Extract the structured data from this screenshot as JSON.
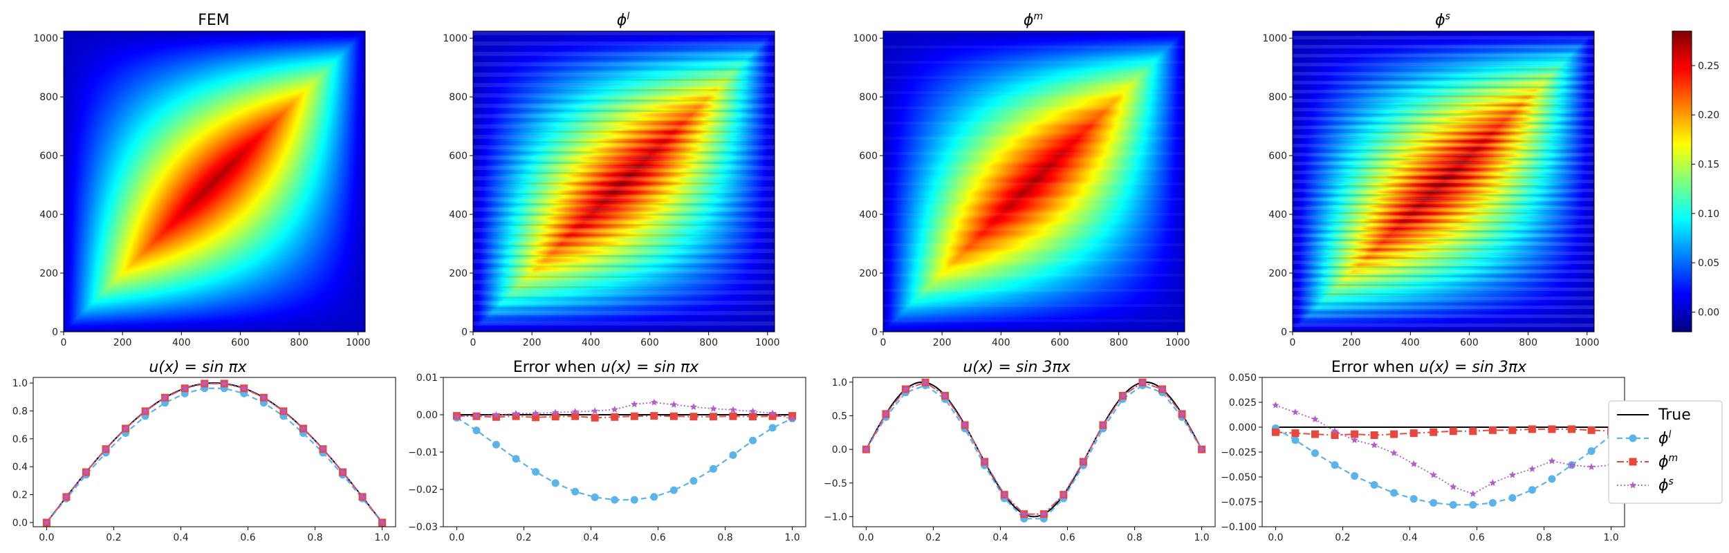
{
  "chart_data": [
    {
      "type": "heatmap",
      "id": "hm0",
      "title": "FEM",
      "xlim": [
        0,
        1024
      ],
      "ylim": [
        0,
        1024
      ],
      "xticks": [
        "0",
        "200",
        "400",
        "600",
        "800",
        "1000"
      ],
      "yticks": [
        "0",
        "200",
        "400",
        "600",
        "800",
        "1000"
      ],
      "peak_value": 0.28,
      "peak_location": [
        512,
        512
      ],
      "banding": "none"
    },
    {
      "type": "heatmap",
      "id": "hm1",
      "title": "ϕl",
      "xlim": [
        0,
        1024
      ],
      "ylim": [
        0,
        1024
      ],
      "xticks": [
        "0",
        "200",
        "400",
        "600",
        "800",
        "1000"
      ],
      "yticks": [
        "0",
        "200",
        "400",
        "600",
        "800",
        "1000"
      ],
      "peak_value": 0.28,
      "peak_location": [
        512,
        512
      ],
      "banding": "horizontal"
    },
    {
      "type": "heatmap",
      "id": "hm2",
      "title": "ϕm",
      "xlim": [
        0,
        1024
      ],
      "ylim": [
        0,
        1024
      ],
      "xticks": [
        "0",
        "200",
        "400",
        "600",
        "800",
        "1000"
      ],
      "yticks": [
        "0",
        "200",
        "400",
        "600",
        "800",
        "1000"
      ],
      "peak_value": 0.28,
      "peak_location": [
        512,
        512
      ],
      "banding": "light"
    },
    {
      "type": "heatmap",
      "id": "hm3",
      "title": "ϕs",
      "xlim": [
        0,
        1024
      ],
      "ylim": [
        0,
        1024
      ],
      "xticks": [
        "0",
        "200",
        "400",
        "600",
        "800",
        "1000"
      ],
      "yticks": [
        "0",
        "200",
        "400",
        "600",
        "800",
        "1000"
      ],
      "peak_value": 0.28,
      "peak_location": [
        512,
        512
      ],
      "banding": "strong"
    },
    {
      "type": "colorbar",
      "id": "cbar",
      "colormap": "jet",
      "range": [
        -0.02,
        0.285
      ],
      "ticks": [
        0.0,
        0.05,
        0.1,
        0.15,
        0.2,
        0.25
      ],
      "tick_labels": [
        "0.00",
        "0.05",
        "0.10",
        "0.15",
        "0.20",
        "0.25"
      ]
    },
    {
      "type": "line",
      "id": "lp0",
      "title": "u(x) = sin πx",
      "xlim": [
        -0.04,
        1.04
      ],
      "ylim": [
        -0.03,
        1.04
      ],
      "xticks": [
        0.0,
        0.2,
        0.4,
        0.6,
        0.8,
        1.0
      ],
      "xtick_labels": [
        "0.0",
        "0.2",
        "0.4",
        "0.6",
        "0.8",
        "1.0"
      ],
      "yticks": [
        0.0,
        0.2,
        0.4,
        0.6,
        0.8,
        1.0
      ],
      "ytick_labels": [
        "0.0",
        "0.2",
        "0.4",
        "0.6",
        "0.8",
        "1.0"
      ],
      "x": [
        0,
        0.0588,
        0.1176,
        0.1765,
        0.2353,
        0.2941,
        0.3529,
        0.4118,
        0.4706,
        0.5294,
        0.5882,
        0.6471,
        0.7059,
        0.7647,
        0.8235,
        0.8824,
        0.9412,
        1.0
      ],
      "series": [
        {
          "name": "True",
          "values": [
            0,
            0.1837,
            0.3612,
            0.5264,
            0.6737,
            0.798,
            0.8952,
            0.9618,
            0.9957,
            0.9957,
            0.9618,
            0.8952,
            0.798,
            0.6737,
            0.5264,
            0.3612,
            0.1837,
            0
          ]
        },
        {
          "name": "ϕl",
          "values": [
            0,
            0.172,
            0.342,
            0.5,
            0.641,
            0.763,
            0.858,
            0.925,
            0.962,
            0.962,
            0.925,
            0.858,
            0.763,
            0.641,
            0.5,
            0.342,
            0.172,
            0
          ]
        },
        {
          "name": "ϕm",
          "values": [
            0,
            0.1837,
            0.3612,
            0.5264,
            0.6737,
            0.798,
            0.8952,
            0.9618,
            0.9957,
            0.9957,
            0.9618,
            0.8952,
            0.798,
            0.6737,
            0.5264,
            0.3612,
            0.1837,
            0
          ]
        },
        {
          "name": "ϕs",
          "values": [
            0,
            0.1837,
            0.3612,
            0.5264,
            0.6737,
            0.798,
            0.8952,
            0.9618,
            0.9957,
            0.9957,
            0.9618,
            0.8952,
            0.798,
            0.6737,
            0.5264,
            0.3612,
            0.1837,
            0
          ]
        }
      ]
    },
    {
      "type": "line",
      "id": "lp1",
      "title": "Error when u(x) = sin πx",
      "xlim": [
        -0.04,
        1.04
      ],
      "ylim": [
        -0.03,
        0.01
      ],
      "xticks": [
        0.0,
        0.2,
        0.4,
        0.6,
        0.8,
        1.0
      ],
      "xtick_labels": [
        "0.0",
        "0.2",
        "0.4",
        "0.6",
        "0.8",
        "1.0"
      ],
      "yticks": [
        -0.03,
        -0.02,
        -0.01,
        0.0,
        0.01
      ],
      "ytick_labels": [
        "−0.03",
        "−0.02",
        "−0.01",
        "0.00",
        "0.01"
      ],
      "x": [
        0,
        0.0588,
        0.1176,
        0.1765,
        0.2353,
        0.2941,
        0.3529,
        0.4118,
        0.4706,
        0.5294,
        0.5882,
        0.6471,
        0.7059,
        0.7647,
        0.8235,
        0.8824,
        0.9412,
        1.0
      ],
      "series": [
        {
          "name": "True",
          "values": [
            0,
            0,
            0,
            0,
            0,
            0,
            0,
            0,
            0,
            0,
            0,
            0,
            0,
            0,
            0,
            0,
            0,
            0
          ]
        },
        {
          "name": "ϕl",
          "values": [
            -0.0008,
            -0.0042,
            -0.008,
            -0.0118,
            -0.0153,
            -0.0183,
            -0.0206,
            -0.0221,
            -0.0228,
            -0.0228,
            -0.022,
            -0.0202,
            -0.0177,
            -0.0145,
            -0.0108,
            -0.0069,
            -0.0035,
            -0.001
          ]
        },
        {
          "name": "ϕm",
          "values": [
            -0.0003,
            -0.0004,
            -0.0006,
            -0.0004,
            -0.0007,
            -0.0005,
            -0.0004,
            -0.0008,
            -0.0006,
            -0.0004,
            -0.0003,
            -0.0004,
            -0.0005,
            -0.0005,
            -0.0004,
            -0.0005,
            -0.0004,
            -0.0003
          ]
        },
        {
          "name": "ϕs",
          "values": [
            -0.0005,
            -0.0003,
            -0.0001,
            0.0003,
            0.0004,
            0.0006,
            0.0008,
            0.001,
            0.0014,
            0.0028,
            0.0033,
            0.0027,
            0.0021,
            0.0016,
            0.0013,
            0.0009,
            0.0004,
            -0.0011
          ]
        }
      ]
    },
    {
      "type": "line",
      "id": "lp2",
      "title": "u(x) = sin 3πx",
      "xlim": [
        -0.04,
        1.04
      ],
      "ylim": [
        -1.15,
        1.07
      ],
      "xticks": [
        0.0,
        0.2,
        0.4,
        0.6,
        0.8,
        1.0
      ],
      "xtick_labels": [
        "0.0",
        "0.2",
        "0.4",
        "0.6",
        "0.8",
        "1.0"
      ],
      "yticks": [
        -1.0,
        -0.5,
        0.0,
        0.5,
        1.0
      ],
      "ytick_labels": [
        "−1.0",
        "−0.5",
        "0.0",
        "0.5",
        "1.0"
      ],
      "x": [
        0,
        0.0588,
        0.1176,
        0.1765,
        0.2353,
        0.2941,
        0.3529,
        0.4118,
        0.4706,
        0.5294,
        0.5882,
        0.6471,
        0.7059,
        0.7647,
        0.8235,
        0.8824,
        0.9412,
        1.0
      ],
      "series": [
        {
          "name": "True",
          "values": [
            0,
            0.5264,
            0.8952,
            0.9957,
            0.798,
            0.3612,
            -0.1837,
            -0.6737,
            -0.9618,
            -0.9618,
            -0.6737,
            -0.1837,
            0.3612,
            0.798,
            0.9957,
            0.8952,
            0.5264,
            0
          ]
        },
        {
          "name": "ϕl",
          "values": [
            0,
            0.48,
            0.846,
            0.952,
            0.748,
            0.31,
            -0.238,
            -0.728,
            -1.03,
            -1.03,
            -0.728,
            -0.238,
            0.31,
            0.748,
            0.952,
            0.846,
            0.48,
            0
          ]
        },
        {
          "name": "ϕm",
          "values": [
            0,
            0.5264,
            0.8952,
            0.9957,
            0.798,
            0.3612,
            -0.1837,
            -0.6737,
            -0.9618,
            -0.9618,
            -0.6737,
            -0.1837,
            0.3612,
            0.798,
            0.9957,
            0.8952,
            0.5264,
            0
          ]
        },
        {
          "name": "ϕs",
          "values": [
            0,
            0.5264,
            0.8952,
            0.9957,
            0.798,
            0.3612,
            -0.1837,
            -0.6737,
            -0.9618,
            -0.9618,
            -0.6737,
            -0.1837,
            0.3612,
            0.798,
            0.9957,
            0.8952,
            0.5264,
            0
          ]
        }
      ]
    },
    {
      "type": "line",
      "id": "lp3",
      "title": "Error when u(x) = sin 3πx",
      "xlim": [
        -0.04,
        1.04
      ],
      "ylim": [
        -0.1,
        0.05
      ],
      "xticks": [
        0.0,
        0.2,
        0.4,
        0.6,
        0.8,
        1.0
      ],
      "xtick_labels": [
        "0.0",
        "0.2",
        "0.4",
        "0.6",
        "0.8",
        "1.0"
      ],
      "yticks": [
        -0.1,
        -0.075,
        -0.05,
        -0.025,
        0.0,
        0.025,
        0.05
      ],
      "ytick_labels": [
        "−0.100",
        "−0.075",
        "−0.050",
        "−0.025",
        "0.000",
        "0.025",
        "0.050"
      ],
      "x": [
        0,
        0.0588,
        0.1176,
        0.1765,
        0.2353,
        0.2941,
        0.3529,
        0.4118,
        0.4706,
        0.5294,
        0.5882,
        0.6471,
        0.7059,
        0.7647,
        0.8235,
        0.8824,
        0.9412,
        1.0
      ],
      "series": [
        {
          "name": "True",
          "values": [
            0,
            0,
            0,
            0,
            0,
            0,
            0,
            0,
            0,
            0,
            0,
            0,
            0,
            0,
            0,
            0,
            0,
            0
          ]
        },
        {
          "name": "ϕl",
          "values": [
            -0.001,
            -0.013,
            -0.026,
            -0.038,
            -0.049,
            -0.058,
            -0.066,
            -0.072,
            -0.076,
            -0.078,
            -0.078,
            -0.076,
            -0.071,
            -0.063,
            -0.052,
            -0.038,
            -0.024,
            -0.008
          ]
        },
        {
          "name": "ϕm",
          "values": [
            -0.005,
            -0.006,
            -0.007,
            -0.008,
            -0.007,
            -0.008,
            -0.007,
            -0.006,
            -0.005,
            -0.004,
            -0.004,
            -0.003,
            -0.003,
            -0.002,
            -0.002,
            -0.002,
            -0.003,
            -0.004
          ]
        },
        {
          "name": "ϕs",
          "values": [
            0.022,
            0.015,
            0.008,
            -0.004,
            -0.013,
            -0.018,
            -0.026,
            -0.037,
            -0.048,
            -0.06,
            -0.067,
            -0.056,
            -0.048,
            -0.042,
            -0.034,
            -0.038,
            -0.04,
            -0.038
          ]
        }
      ]
    }
  ],
  "legend": {
    "entries": [
      {
        "series": "True",
        "label_main": "True",
        "label_sup": "",
        "color": "#000000",
        "marker": "none",
        "dash": "solid"
      },
      {
        "series": "ϕl",
        "label_main": "ϕ",
        "label_sup": "l",
        "color": "#5ab4ea",
        "marker": "circle",
        "dash": "dashed"
      },
      {
        "series": "ϕm",
        "label_main": "ϕ",
        "label_sup": "m",
        "color": "#e8473d",
        "marker": "square",
        "dash": "dashdot"
      },
      {
        "series": "ϕs",
        "label_main": "ϕ",
        "label_sup": "s",
        "color": "#b05fc9",
        "marker": "star",
        "dash": "dotted"
      }
    ]
  },
  "titles": {
    "hm0": {
      "main": "FEM",
      "sup": ""
    },
    "hm1": {
      "main": "ϕ",
      "sup": "l"
    },
    "hm2": {
      "main": "ϕ",
      "sup": "m"
    },
    "hm3": {
      "main": "ϕ",
      "sup": "s"
    },
    "lp0": {
      "prefix": "",
      "func": "u(x) = sin πx"
    },
    "lp1": {
      "prefix": "Error when ",
      "func": "u(x) = sin πx"
    },
    "lp2": {
      "prefix": "",
      "func": "u(x) = sin 3πx"
    },
    "lp3": {
      "prefix": "Error when ",
      "func": "u(x) = sin 3πx"
    }
  }
}
